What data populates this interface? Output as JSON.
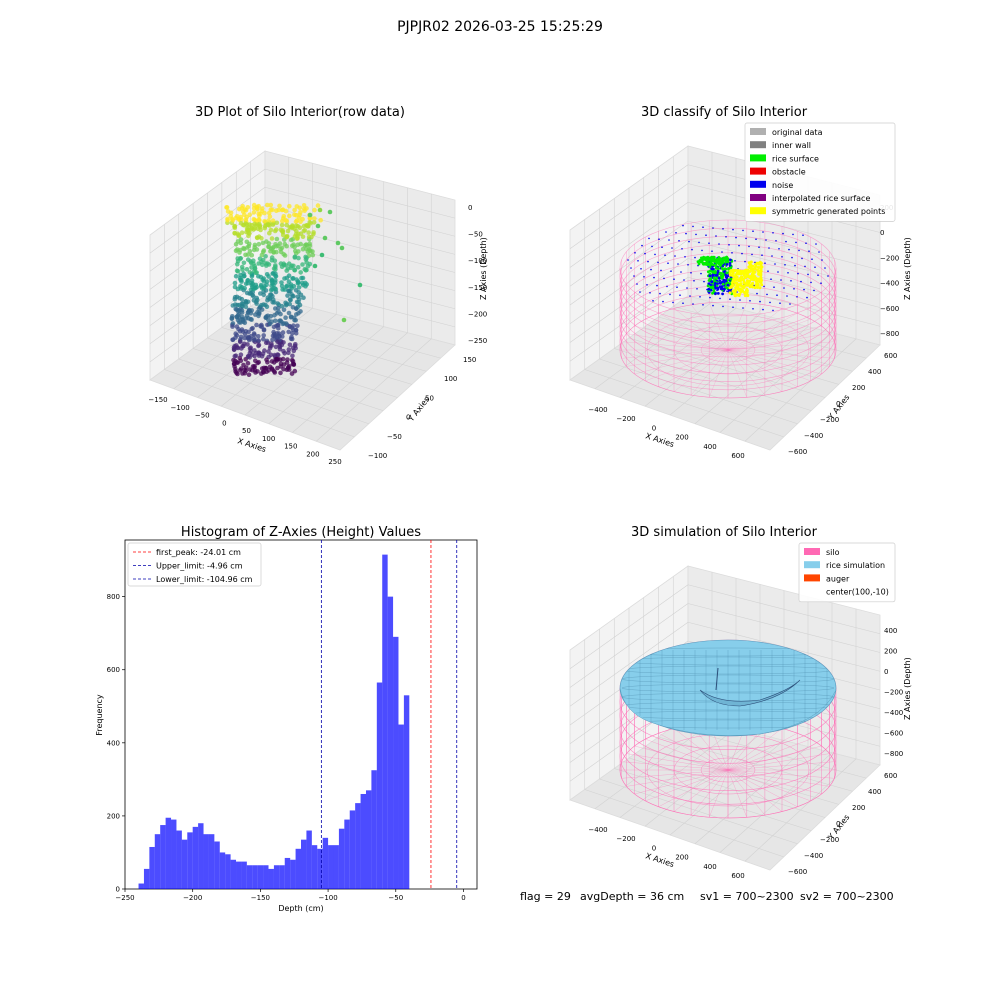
{
  "suptitle": "PJPJR02 2026-03-25 15:25:29",
  "panels": {
    "raw": {
      "title": "3D Plot of Silo Interior(row data)",
      "xlabel": "X Axies",
      "ylabel": "Y Axies",
      "zlabel": "Z Axies (Depth)",
      "xticks": [
        "−150",
        "−100",
        "−50",
        "0",
        "50",
        "100",
        "150",
        "200",
        "250"
      ],
      "yticks": [
        "150",
        "100",
        "50",
        "0",
        "−50",
        "−100"
      ],
      "zticks": [
        "0",
        "−50",
        "−100",
        "−150",
        "−200",
        "−250"
      ]
    },
    "classify": {
      "title": "3D classify of Silo Interior",
      "xlabel": "X Axies",
      "ylabel": "Y Axies",
      "zlabel": "Z Axies (Depth)",
      "xticks": [
        "−400",
        "−200",
        "0",
        "200",
        "400",
        "600"
      ],
      "yticks": [
        "600",
        "400",
        "200",
        "0",
        "−200",
        "−400",
        "−600"
      ],
      "zticks": [
        "200",
        "0",
        "−200",
        "−400",
        "−600",
        "−800"
      ],
      "legend": [
        {
          "label": "original data",
          "color": "#b0b0b0"
        },
        {
          "label": "inner wall",
          "color": "#808080"
        },
        {
          "label": "rice surface",
          "color": "#00ee00"
        },
        {
          "label": "obstacle",
          "color": "#ee0000"
        },
        {
          "label": "noise",
          "color": "#0000ee"
        },
        {
          "label": "interpolated rice surface",
          "color": "#800080"
        },
        {
          "label": "symmetric generated points",
          "color": "#ffff00"
        }
      ]
    },
    "simulation": {
      "title": "3D simulation of Silo Interior",
      "xlabel": "X Axies",
      "ylabel": "Y Axies",
      "zlabel": "Z Axies (Depth)",
      "xticks": [
        "−400",
        "−200",
        "0",
        "200",
        "400",
        "600"
      ],
      "yticks": [
        "600",
        "400",
        "200",
        "0",
        "−200",
        "−400",
        "−600"
      ],
      "zticks": [
        "400",
        "200",
        "0",
        "−200",
        "−400",
        "−600",
        "−800"
      ],
      "legend": [
        {
          "label": "silo",
          "color": "#ff69b4"
        },
        {
          "label": "rice simulation",
          "color": "#87ceeb"
        },
        {
          "label": "auger",
          "color": "#ff4500"
        },
        {
          "label": "center(100,-10)",
          "color": ""
        }
      ],
      "status": {
        "flag": "flag = 29",
        "avg": "avgDepth = 36 cm",
        "sv1": "sv1 = 700~2300",
        "sv2": "sv2 = 700~2300"
      }
    }
  },
  "chart_data": {
    "type": "bar",
    "title": "Histogram of Z-Axies (Height) Values",
    "xlabel": "Depth (cm)",
    "ylabel": "Frequency",
    "xlim": [
      -250,
      10
    ],
    "ylim": [
      0,
      955
    ],
    "xticks": [
      -250,
      -200,
      -150,
      -100,
      -50,
      0
    ],
    "xtick_labels": [
      "−250",
      "−200",
      "−150",
      "−100",
      "−50",
      "0"
    ],
    "yticks": [
      0,
      200,
      400,
      600,
      800
    ],
    "bar_color": "#0000ff",
    "bins_start": -240,
    "bin_width": 4,
    "values": [
      15,
      55,
      115,
      150,
      175,
      195,
      190,
      160,
      135,
      155,
      170,
      180,
      150,
      150,
      130,
      100,
      95,
      80,
      75,
      75,
      65,
      65,
      65,
      65,
      55,
      65,
      65,
      85,
      80,
      110,
      135,
      160,
      120,
      110,
      140,
      120,
      120,
      165,
      190,
      215,
      235,
      260,
      270,
      325,
      565,
      915,
      800,
      690,
      450,
      530
    ],
    "lines": [
      {
        "label": "first_peak: -24.01 cm",
        "x": -24.01,
        "color": "#ff0000"
      },
      {
        "label": "Upper_limit: -4.96 cm",
        "x": -4.96,
        "color": "#0000aa"
      },
      {
        "label": "Lower_limit: -104.96 cm",
        "x": -104.96,
        "color": "#0000aa"
      }
    ],
    "legend_position": "top-left"
  }
}
